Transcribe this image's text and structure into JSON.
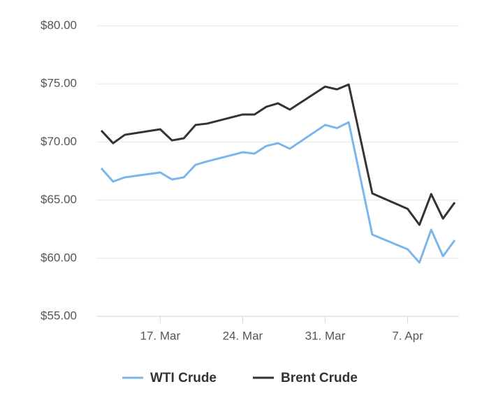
{
  "chart_data": {
    "type": "line",
    "x": [
      "03-12",
      "03-13",
      "03-14",
      "03-17",
      "03-18",
      "03-19",
      "03-20",
      "03-21",
      "03-24",
      "03-25",
      "03-26",
      "03-27",
      "03-28",
      "03-31",
      "04-01",
      "04-02",
      "04-04",
      "04-07",
      "04-08",
      "04-09",
      "04-10",
      "04-11"
    ],
    "series": [
      {
        "name": "WTI Crude",
        "color": "#7cb5ec",
        "values": [
          67.74,
          66.6,
          66.96,
          67.38,
          66.78,
          66.96,
          68.04,
          68.34,
          69.12,
          69.0,
          69.66,
          69.9,
          69.42,
          71.47,
          71.2,
          71.7,
          62.03,
          60.77,
          59.63,
          62.45,
          60.17,
          61.55
        ]
      },
      {
        "name": "Brent Crude",
        "color": "#333333",
        "values": [
          70.99,
          69.9,
          70.62,
          71.1,
          70.14,
          70.32,
          71.47,
          71.59,
          72.37,
          72.37,
          73.03,
          73.33,
          72.79,
          74.77,
          74.53,
          74.95,
          65.58,
          64.25,
          62.87,
          65.52,
          63.41,
          64.8
        ]
      }
    ],
    "xlim": [
      "03-12",
      "04-11"
    ],
    "xticks": [
      {
        "value": "03-17",
        "label": "17. Mar"
      },
      {
        "value": "03-24",
        "label": "24. Mar"
      },
      {
        "value": "03-31",
        "label": "31. Mar"
      },
      {
        "value": "04-07",
        "label": "7. Apr"
      }
    ],
    "ylim": [
      55,
      80
    ],
    "yticks": [
      {
        "value": 55,
        "label": "$55.00"
      },
      {
        "value": 60,
        "label": "$60.00"
      },
      {
        "value": 65,
        "label": "$65.00"
      },
      {
        "value": 70,
        "label": "$70.00"
      },
      {
        "value": 75,
        "label": "$75.00"
      },
      {
        "value": 80,
        "label": "$80.00"
      }
    ],
    "grid": true
  }
}
